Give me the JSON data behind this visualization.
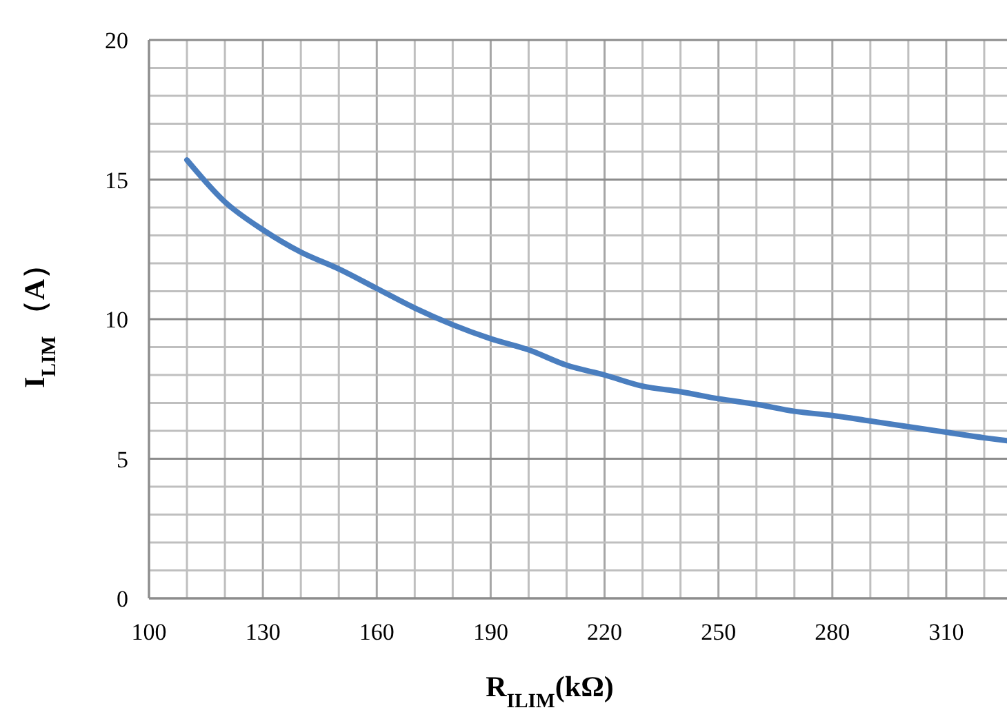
{
  "chart_data": {
    "type": "line",
    "xlabel": "R$_{ILIM}$(kΩ)",
    "ylabel": "I$_{LIM}$ （A）",
    "xlim": [
      100,
      326
    ],
    "ylim": [
      0,
      20
    ],
    "xticks": [
      100,
      {
        "value": 110,
        "label": null
      },
      {
        "value": 120,
        "label": null
      },
      130,
      {
        "value": 140,
        "label": null
      },
      {
        "value": 150,
        "label": null
      },
      160,
      {
        "value": 170,
        "label": null
      },
      {
        "value": 180,
        "label": null
      },
      190,
      {
        "value": 200,
        "label": null
      },
      {
        "value": 210,
        "label": null
      },
      220,
      {
        "value": 230,
        "label": null
      },
      {
        "value": 240,
        "label": null
      },
      250,
      {
        "value": 260,
        "label": null
      },
      {
        "value": 270,
        "label": null
      },
      280,
      {
        "value": 290,
        "label": null
      },
      {
        "value": 300,
        "label": null
      },
      310,
      {
        "value": 320,
        "label": null
      }
    ],
    "yticks": [
      0,
      {
        "value": 1,
        "label": null
      },
      {
        "value": 2,
        "label": null
      },
      {
        "value": 3,
        "label": null
      },
      {
        "value": 4,
        "label": null
      },
      5,
      {
        "value": 6,
        "label": null
      },
      {
        "value": 7,
        "label": null
      },
      {
        "value": 8,
        "label": null
      },
      {
        "value": 9,
        "label": null
      },
      10,
      {
        "value": 11,
        "label": null
      },
      {
        "value": 12,
        "label": null
      },
      {
        "value": 13,
        "label": null
      },
      {
        "value": 14,
        "label": null
      },
      15,
      {
        "value": 16,
        "label": null
      },
      {
        "value": 17,
        "label": null
      },
      {
        "value": 18,
        "label": null
      },
      {
        "value": 19,
        "label": null
      },
      20
    ],
    "grid": true,
    "series": [
      {
        "color": "#4a7ebf",
        "x": [
          110,
          120,
          130,
          140,
          150,
          160,
          170,
          180,
          190,
          200,
          210,
          220,
          230,
          240,
          250,
          260,
          270,
          280,
          290,
          300,
          310,
          320,
          326
        ],
        "values": [
          15.7,
          14.2,
          13.2,
          12.4,
          11.8,
          11.1,
          10.4,
          9.8,
          9.3,
          8.9,
          8.35,
          8.0,
          7.6,
          7.4,
          7.15,
          6.95,
          6.7,
          6.55,
          6.35,
          6.15,
          5.95,
          5.75,
          5.65
        ]
      }
    ]
  }
}
